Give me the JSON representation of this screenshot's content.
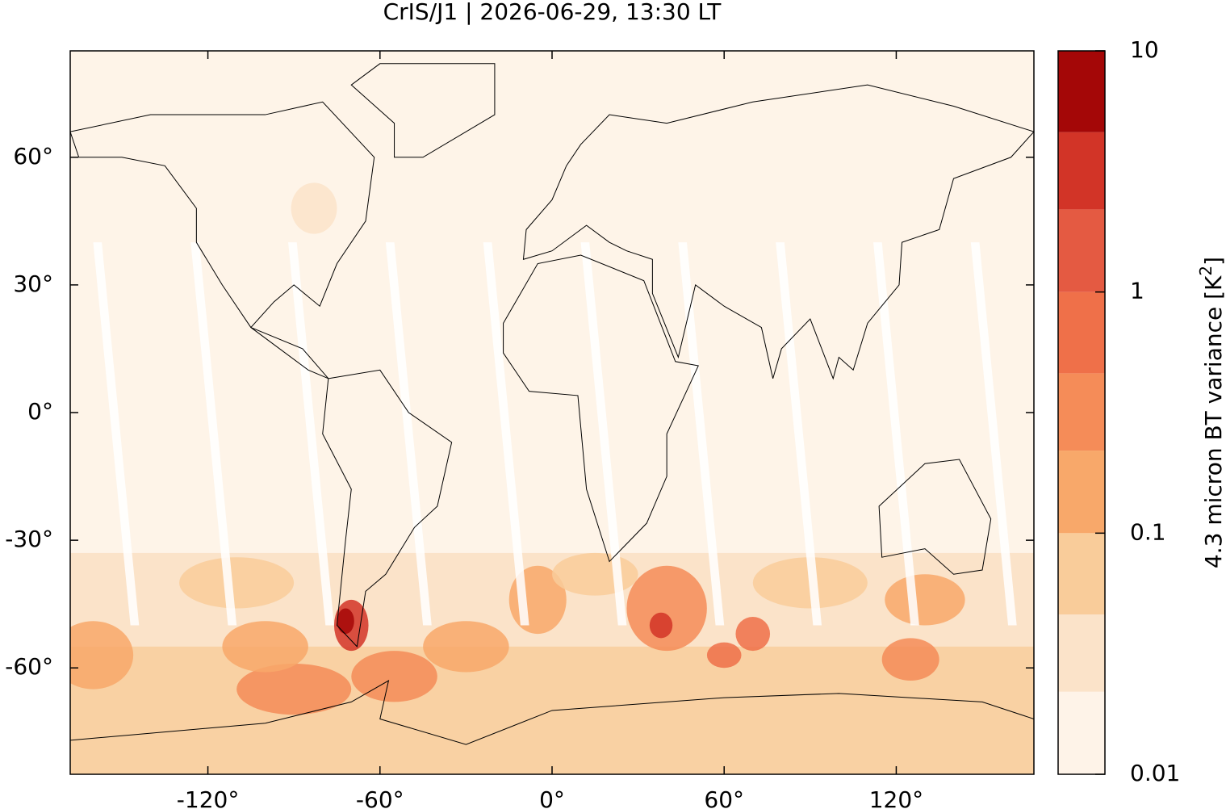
{
  "map": {
    "title": "CrIS/J1 | 2026-06-29, 13:30 LT",
    "xlim": [
      -168,
      168
    ],
    "ylim": [
      -85,
      85
    ],
    "xticks": [
      {
        "value": -120,
        "label": "-120°"
      },
      {
        "value": -60,
        "label": "-60°"
      },
      {
        "value": 0,
        "label": "0°"
      },
      {
        "value": 60,
        "label": "60°"
      },
      {
        "value": 120,
        "label": "120°"
      }
    ],
    "yticks": [
      {
        "value": -60,
        "label": "-60°"
      },
      {
        "value": -30,
        "label": "-30°"
      },
      {
        "value": 0,
        "label": "0°"
      },
      {
        "value": 30,
        "label": "30°"
      },
      {
        "value": 60,
        "label": "60°"
      }
    ],
    "colorbar": {
      "label": {
        "text": "4.3 micron BT variance [K",
        "superscript": "2",
        "suffix": "]"
      },
      "scale": "log",
      "lim": [
        0.01,
        10
      ],
      "ticks": [
        0.01,
        0.1,
        1,
        10
      ],
      "levels": [
        0.01,
        0.022,
        0.046,
        0.1,
        0.22,
        0.46,
        1,
        2.2,
        4.6,
        10
      ],
      "colors": [
        "#fef3e8",
        "#fbe3c9",
        "#f9cc9a",
        "#f8a86a",
        "#f58c58",
        "#ef7049",
        "#e45a42",
        "#d23427",
        "#a40707"
      ]
    }
  }
}
